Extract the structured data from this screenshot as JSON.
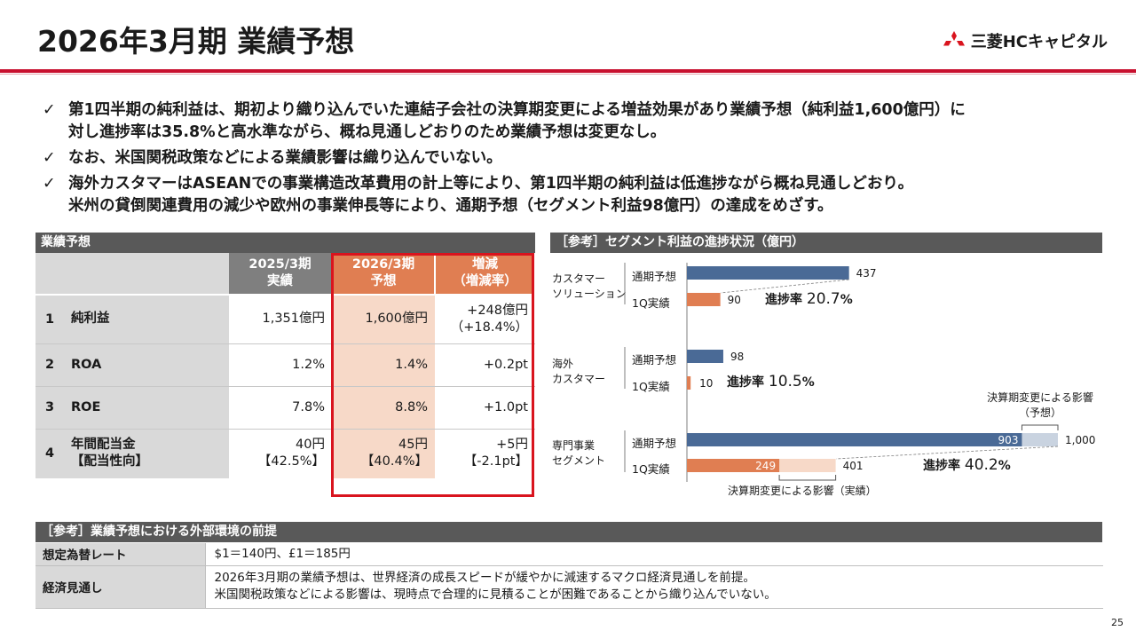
{
  "header": {
    "title": "2026年3月期 業績予想",
    "logo_text": "三菱HCキャピタル",
    "accent_color": "#c8102e"
  },
  "bullets": [
    "第1四半期の純利益は、期初より織り込んでいた連結子会社の決算期変更による増益効果があり業績予想（純利益1,600億円）に\n対し進捗率は35.8%と高水準ながら、概ね見通しどおりのため業績予想は変更なし。",
    "なお、米国関税政策などによる業績影響は織り込んでいない。",
    "海外カスタマーはASEANでの事業構造改革費用の計上等により、第1四半期の純利益は低進捗ながら概ね見通しどおり。\n米州の貸倒関連費用の減少や欧州の事業伸長等により、通期予想（セグメント利益98億円）の達成をめざす。"
  ],
  "results_table": {
    "section_title": "業績予想",
    "headers": [
      "",
      "",
      "2025/3期\n実績",
      "2026/3期\n予想",
      "増減\n（増減率）"
    ],
    "rows": [
      {
        "no": "1",
        "label": "純利益",
        "actual": "1,351億円",
        "forecast": "1,600億円",
        "change": "+248億円\n（+18.4%）"
      },
      {
        "no": "2",
        "label": "ROA",
        "actual": "1.2%",
        "forecast": "1.4%",
        "change": "+0.2pt"
      },
      {
        "no": "3",
        "label": "ROE",
        "actual": "7.8%",
        "forecast": "8.8%",
        "change": "+1.0pt"
      },
      {
        "no": "4",
        "label": "年間配当金\n【配当性向】",
        "actual": "40円\n【42.5%】",
        "forecast": "45円\n【40.4%】",
        "change": "+5円\n【-2.1pt】"
      }
    ]
  },
  "chart_section_title": "［参考］セグメント利益の進捗状況（億円）",
  "chart_data": {
    "type": "bar",
    "orientation": "horizontal",
    "xlim": [
      0,
      1000
    ],
    "colors": {
      "forecast": "#4a6a96",
      "q1": "#e07e52",
      "forecast_effect": "#c9d3e0",
      "q1_effect": "#f7d9c8"
    },
    "groups": [
      {
        "name": "カスタマー\nソリューション",
        "bars": [
          {
            "label": "通期予想",
            "value": 437
          },
          {
            "label": "1Q実績",
            "value": 90
          }
        ],
        "progress_label": "進捗率",
        "progress_value": "20.7",
        "progress_unit": "%"
      },
      {
        "name": "海外\nカスタマー",
        "bars": [
          {
            "label": "通期予想",
            "value": 98
          },
          {
            "label": "1Q実績",
            "value": 10
          }
        ],
        "progress_label": "進捗率",
        "progress_value": "10.5",
        "progress_unit": "%"
      },
      {
        "name": "専門事業\nセグメント",
        "bars": [
          {
            "label": "通期予想",
            "value": 903,
            "total": 1000
          },
          {
            "label": "1Q実績",
            "value": 249,
            "total": 401
          }
        ],
        "progress_label": "進捗率",
        "progress_value": "40.2",
        "progress_unit": "%"
      }
    ],
    "annotations": {
      "forecast_effect": "決算期変更による影響\n（予想）",
      "actual_effect": "決算期変更による影響（実績）"
    },
    "value_labels": {
      "cs_forecast": "437",
      "cs_q1": "90",
      "ov_forecast": "98",
      "ov_q1": "10",
      "sp_forecast_inner": "903",
      "sp_forecast_total": "1,000",
      "sp_q1_inner": "249",
      "sp_q1_total": "401"
    }
  },
  "environment_table": {
    "section_title": "［参考］業績予想における外部環境の前提",
    "rows": [
      {
        "key": "想定為替レート",
        "value": "$1＝140円、£1＝185円"
      },
      {
        "key": "経済見通し",
        "value": "2026年3月期の業績予想は、世界経済の成長スピードが緩やかに減速するマクロ経済見通しを前提。\n米国関税政策などによる影響は、現時点で合理的に見積ることが困難であることから織り込んでいない。"
      }
    ]
  },
  "page_number": "25"
}
